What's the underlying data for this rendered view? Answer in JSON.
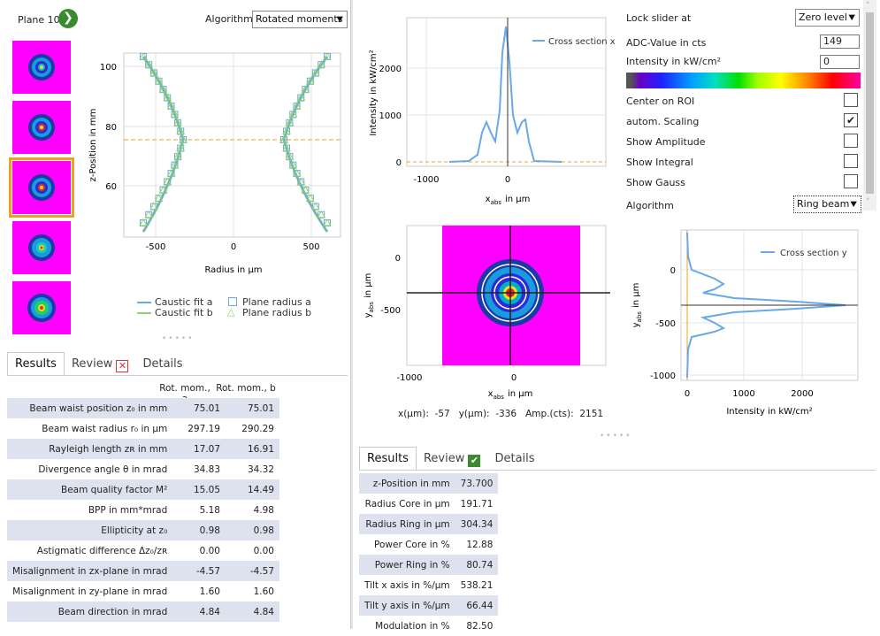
{
  "left_header": {
    "plane_label": "Plane 10",
    "go_glyph": "❯",
    "algorithm_label": "Algorithm",
    "algorithm_value": "Rotated moments"
  },
  "caustic": {
    "ylabel": "z-Position in mm",
    "xlabel": "Radius in µm",
    "xticks": [
      "-500",
      "0",
      "500"
    ],
    "yticks": [
      "100",
      "80",
      "60"
    ],
    "legend": [
      "Caustic fit a",
      "Caustic fit b",
      "Plane radius a",
      "Plane radius b"
    ]
  },
  "left_tabs": {
    "results": "Results",
    "review": "Review",
    "details": "Details"
  },
  "left_table": {
    "col_a": "Rot. mom., a",
    "col_b": "Rot. mom., b",
    "rows": [
      {
        "label": "Beam waist position z₀ in mm",
        "a": "75.01",
        "b": "75.01"
      },
      {
        "label": "Beam waist radius r₀ in µm",
        "a": "297.19",
        "b": "290.29"
      },
      {
        "label": "Rayleigh length zʀ in mm",
        "a": "17.07",
        "b": "16.91"
      },
      {
        "label": "Divergence angle θ in mrad",
        "a": "34.83",
        "b": "34.32"
      },
      {
        "label": "Beam quality factor M²",
        "a": "15.05",
        "b": "14.49"
      },
      {
        "label": "BPP in mm*mrad",
        "a": "5.18",
        "b": "4.98"
      },
      {
        "label": "Ellipticity at z₀",
        "a": "0.98",
        "b": "0.98"
      },
      {
        "label": "Astigmatic difference Δz₀/zʀ",
        "a": "0.00",
        "b": "0.00"
      },
      {
        "label": "Misalignment in zx-plane in mrad",
        "a": "-4.57",
        "b": "-4.57"
      },
      {
        "label": "Misalignment in zy-plane in mrad",
        "a": "1.60",
        "b": "1.60"
      },
      {
        "label": "Beam direction in mrad",
        "a": "4.84",
        "b": "4.84"
      }
    ]
  },
  "cross_x": {
    "ylabel": "Intensity in kW/cm²",
    "xlabel_main": "x",
    "xlabel_sub": "abs",
    "xlabel_unit": "in µm",
    "legend": "Cross section x",
    "yticks": [
      "2000",
      "1000",
      "0"
    ],
    "xticks": [
      "-1000",
      "0"
    ]
  },
  "image2d": {
    "ylabel": "yₐₕₛ in µm",
    "ylabel_main": "y",
    "ylabel_sub": "abs",
    "ylabel_unit": "in µm",
    "xlabel_main": "x",
    "xlabel_sub": "abs",
    "xlabel_unit": "in µm",
    "yticks": [
      "0",
      "-500"
    ],
    "xticks": [
      "-1000",
      "0"
    ]
  },
  "cursor": {
    "x_label": "x(µm):",
    "x_value": "-57",
    "y_label": "y(µm):",
    "y_value": "-336",
    "amp_label": "Amp.(cts):",
    "amp_value": "2151"
  },
  "cross_y": {
    "legend": "Cross section y",
    "xlabel": "Intensity in kW/cm²",
    "ylabel_main": "y",
    "ylabel_sub": "abs",
    "ylabel_unit": "in µm",
    "yticks": [
      "0",
      "-500",
      "-1000"
    ],
    "xticks": [
      "0",
      "1000",
      "2000"
    ]
  },
  "controls": {
    "lock_label": "Lock slider at",
    "lock_value": "Zero level",
    "adc_label": "ADC-Value in cts",
    "adc_value": "149",
    "intensity_label": "Intensity in kW/cm²",
    "intensity_value": "0",
    "center_roi": "Center on ROI",
    "auto_scaling": "autom. Scaling",
    "auto_scaling_check": "✔",
    "show_amplitude": "Show Amplitude",
    "show_integral": "Show Integral",
    "show_gauss": "Show Gauss",
    "algorithm_label": "Algorithm",
    "algorithm_value": "Ring beam"
  },
  "right_tabs": {
    "results": "Results",
    "review": "Review",
    "details": "Details"
  },
  "right_table": {
    "rows": [
      {
        "label": "z-Position in mm",
        "value": "73.700"
      },
      {
        "label": "Radius Core in µm",
        "value": "191.71"
      },
      {
        "label": "Radius Ring in µm",
        "value": "304.34"
      },
      {
        "label": "Power Core in %",
        "value": "12.88"
      },
      {
        "label": "Power Ring in %",
        "value": "80.74"
      },
      {
        "label": "Tilt x axis in %/µm",
        "value": "538.21"
      },
      {
        "label": "Tilt y axis in %/µm",
        "value": "66.44"
      },
      {
        "label": "Modulation in %",
        "value": "82.50"
      }
    ]
  },
  "colors": {
    "accent": "#f0a020",
    "fit_a": "#6aa8e6",
    "fit_b": "#8fd16a",
    "magenta": "#ff00ff",
    "row_band": "#dde2ee"
  }
}
